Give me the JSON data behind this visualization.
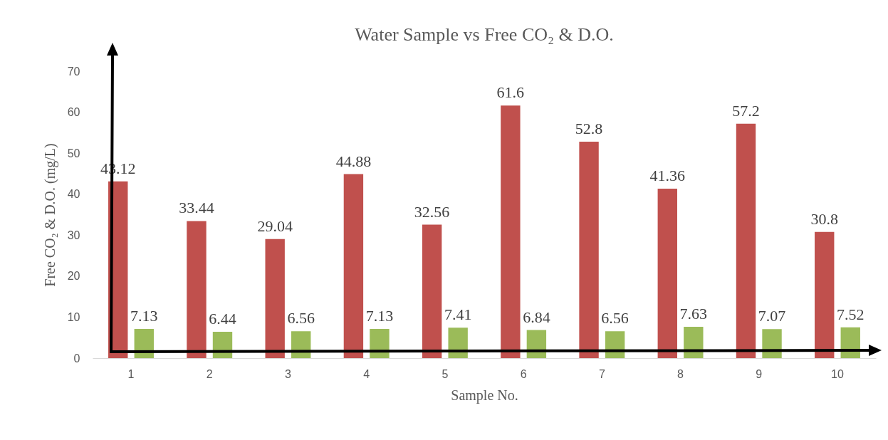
{
  "chart_data": {
    "type": "bar",
    "title": "Water Sample vs Free CO₂ & D.O.",
    "xlabel": "Sample No.",
    "ylabel": "Free CO₂ & D.O. (mg/L)",
    "categories": [
      "1",
      "2",
      "3",
      "4",
      "5",
      "6",
      "7",
      "8",
      "9",
      "10"
    ],
    "series": [
      {
        "color": "#c0504d",
        "values": [
          43.12,
          33.44,
          29.04,
          44.88,
          32.56,
          61.6,
          52.8,
          41.36,
          57.2,
          30.8
        ]
      },
      {
        "color": "#9bbb59",
        "values": [
          7.13,
          6.44,
          6.56,
          7.13,
          7.41,
          6.84,
          6.56,
          7.63,
          7.07,
          7.52
        ]
      }
    ],
    "ylim": [
      0,
      70
    ],
    "yticks": [
      0,
      10,
      20,
      30,
      40,
      50,
      60,
      70
    ],
    "data_labels": true
  }
}
